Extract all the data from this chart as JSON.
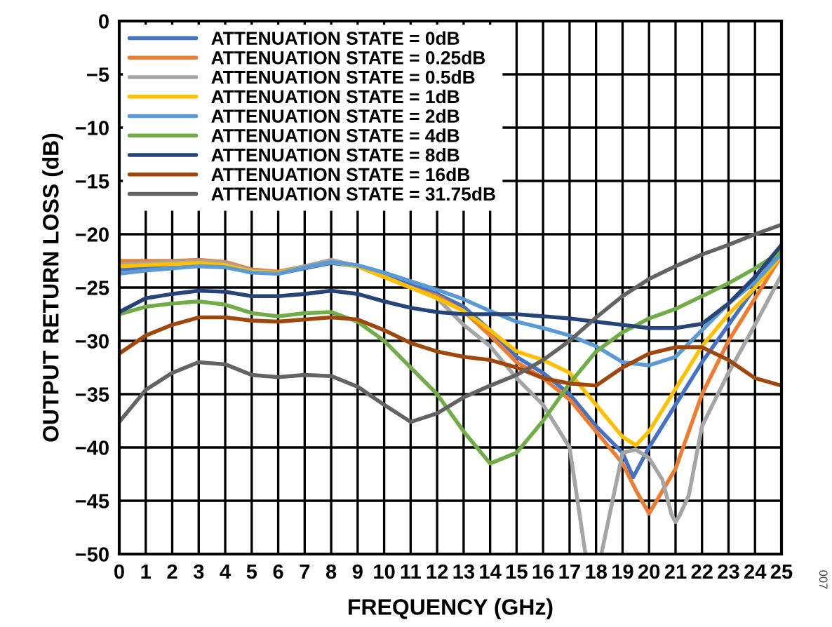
{
  "chart_data": {
    "type": "line",
    "xlabel": "FREQUENCY (GHz)",
    "ylabel": "OUTPUT RETURN LOSS (dB)",
    "x": [
      0,
      1,
      2,
      3,
      4,
      5,
      6,
      7,
      8,
      9,
      10,
      11,
      12,
      13,
      14,
      15,
      16,
      17,
      18,
      19,
      20,
      21,
      22,
      23,
      24,
      25
    ],
    "series": [
      {
        "name": "ATTENUATION STATE = 0dB",
        "color": "#4472c4",
        "x": [
          0,
          1,
          2,
          3,
          4,
          5,
          6,
          7,
          8,
          9,
          10,
          11,
          12,
          13,
          14,
          15,
          16,
          17,
          18,
          19,
          19.4,
          20,
          21,
          22,
          23,
          24,
          25
        ],
        "values": [
          -23.3,
          -23.1,
          -23,
          -22.9,
          -23,
          -23.5,
          -23.7,
          -23.2,
          -22.7,
          -23,
          -23.8,
          -24.7,
          -25.6,
          -26.8,
          -29,
          -31.5,
          -33,
          -35,
          -38,
          -40.5,
          -42.8,
          -40,
          -36,
          -32,
          -28.5,
          -25,
          -21
        ]
      },
      {
        "name": "ATTENUATION STATE = 0.25dB",
        "color": "#ed7d31",
        "x": [
          0,
          1,
          2,
          3,
          4,
          5,
          6,
          7,
          8,
          9,
          10,
          11,
          12,
          13,
          14,
          15,
          16,
          17,
          18,
          19,
          19.5,
          20,
          21,
          22,
          23,
          24,
          25
        ],
        "values": [
          -22.5,
          -22.5,
          -22.5,
          -22.4,
          -22.6,
          -23.3,
          -23.5,
          -23,
          -22.5,
          -23,
          -24,
          -25,
          -25.8,
          -27.2,
          -29.5,
          -32,
          -33.5,
          -35.5,
          -38.5,
          -41.5,
          -44,
          -46.2,
          -42,
          -35,
          -30,
          -26,
          -22
        ]
      },
      {
        "name": "ATTENUATION STATE = 0.5dB",
        "color": "#a5a5a5",
        "x": [
          0,
          1,
          2,
          3,
          4,
          5,
          6,
          7,
          8,
          9,
          10,
          11,
          12,
          13,
          14,
          15,
          16,
          17,
          17.6,
          17.9,
          18.2,
          19,
          19.5,
          20,
          20.5,
          20.85,
          21,
          21.15,
          21.5,
          22,
          23,
          24,
          25
        ],
        "values": [
          -22.8,
          -22.7,
          -22.6,
          -22.5,
          -22.7,
          -23.4,
          -23.6,
          -23,
          -22.4,
          -23,
          -24,
          -25,
          -26,
          -28.5,
          -30.5,
          -33.5,
          -36,
          -40,
          -50,
          null,
          -50,
          -40.5,
          -40.2,
          -41,
          -43,
          -46.3,
          -47,
          -46.4,
          -44.5,
          -38,
          -33,
          -28.5,
          -23.8
        ]
      },
      {
        "name": "ATTENUATION STATE = 1dB",
        "color": "#ffc000",
        "x": [
          0,
          1,
          2,
          3,
          4,
          5,
          6,
          7,
          8,
          9,
          10,
          11,
          12,
          13,
          14,
          15,
          16,
          17,
          18,
          19,
          19.5,
          20,
          21,
          22,
          23,
          24,
          25
        ],
        "values": [
          -23,
          -22.9,
          -22.8,
          -22.7,
          -22.9,
          -23.5,
          -23.6,
          -23.1,
          -22.6,
          -23,
          -24,
          -25,
          -26,
          -27.2,
          -29,
          -31,
          -31.8,
          -33,
          -36,
          -39,
          -39.8,
          -38.5,
          -34.5,
          -30.5,
          -27.5,
          -25,
          -22
        ]
      },
      {
        "name": "ATTENUATION STATE = 2dB",
        "color": "#5b9bd5",
        "values": [
          -23.7,
          -23.4,
          -23.2,
          -23,
          -23.1,
          -23.6,
          -23.7,
          -23.1,
          -22.6,
          -22.9,
          -23.6,
          -24.4,
          -25.2,
          -26.1,
          -27.2,
          -28.2,
          -28.8,
          -29.5,
          -30.5,
          -32,
          -32.3,
          -31.5,
          -29,
          -26.5,
          -24.5,
          -21.8
        ]
      },
      {
        "name": "ATTENUATION STATE = 4dB",
        "color": "#70ad47",
        "values": [
          -27.5,
          -26.8,
          -26.5,
          -26.3,
          -26.6,
          -27.4,
          -27.7,
          -27.4,
          -27.3,
          -28.2,
          -30,
          -32.5,
          -35,
          -38.5,
          -41.5,
          -40.5,
          -37.5,
          -34,
          -31,
          -29.2,
          -27.9,
          -27,
          -25.8,
          -24.6,
          -23.2,
          -21.6
        ]
      },
      {
        "name": "ATTENUATION STATE = 8dB",
        "color": "#264478",
        "values": [
          -27.3,
          -26,
          -25.6,
          -25.3,
          -25.4,
          -25.8,
          -25.8,
          -25.6,
          -25.3,
          -25.6,
          -26.3,
          -26.9,
          -27.3,
          -27.5,
          -27.5,
          -27.5,
          -27.7,
          -27.9,
          -28.2,
          -28.5,
          -28.8,
          -28.8,
          -28.4,
          -26.5,
          -24,
          -21
        ]
      },
      {
        "name": "ATTENUATION STATE = 16dB",
        "color": "#9e480e",
        "values": [
          -31.2,
          -29.5,
          -28.5,
          -27.8,
          -27.8,
          -28.1,
          -28.2,
          -28,
          -27.8,
          -28,
          -29,
          -30.2,
          -31,
          -31.5,
          -31.8,
          -32.5,
          -33.5,
          -34,
          -34.2,
          -32.5,
          -31.2,
          -30.6,
          -30.6,
          -31.8,
          -33.5,
          -34.2
        ]
      },
      {
        "name": "ATTENUATION STATE = 31.75dB",
        "color": "#636363",
        "values": [
          -37.6,
          -34.6,
          -33,
          -32,
          -32.2,
          -33.2,
          -33.4,
          -33.2,
          -33.3,
          -34.3,
          -36,
          -37.6,
          -36.8,
          -35.3,
          -34.2,
          -33.2,
          -31.8,
          -30,
          -27.8,
          -25.8,
          -24.2,
          -23,
          -21.9,
          -21,
          -20,
          -19.1
        ]
      }
    ],
    "xlim": [
      0,
      25
    ],
    "xticks": [
      0,
      1,
      2,
      3,
      4,
      5,
      6,
      7,
      8,
      9,
      10,
      11,
      12,
      13,
      14,
      15,
      16,
      17,
      18,
      19,
      20,
      21,
      22,
      23,
      24,
      25
    ],
    "ylim": [
      -50,
      0
    ],
    "yticks": [
      -50,
      -45,
      -40,
      -35,
      -30,
      -25,
      -20,
      -15,
      -10,
      -5,
      0
    ],
    "grid": true,
    "legend": "top left",
    "marker": "none",
    "line_style": "solid",
    "annotations": [
      "007"
    ]
  }
}
